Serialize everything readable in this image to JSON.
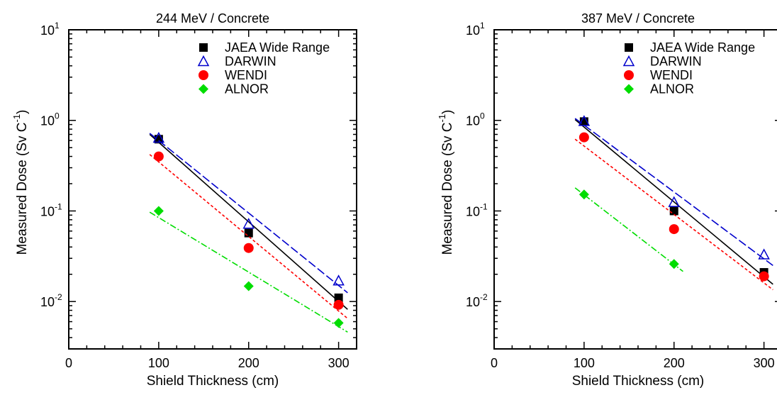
{
  "chart_data": [
    {
      "type": "scatter",
      "title": "244 MeV / Concrete",
      "xlabel": "Shield Thickness (cm)",
      "ylabel": "Measured Dose (Sv C",
      "ylabel_sup": "-1",
      "ylabel_close": ")",
      "xlim": [
        0,
        320
      ],
      "ylim": [
        0.003,
        10
      ],
      "yscale": "log",
      "x_ticks": [
        0,
        100,
        200,
        300
      ],
      "y_ticks": [
        {
          "base": "10",
          "exp": "1",
          "value": 10
        },
        {
          "base": "10",
          "exp": "0",
          "value": 1
        },
        {
          "base": "10",
          "exp": "-1",
          "value": 0.1
        },
        {
          "base": "10",
          "exp": "-2",
          "value": 0.01
        }
      ],
      "legend_position": "top-right",
      "series": [
        {
          "name": "JAEA Wide Range",
          "color": "#000000",
          "marker": "square",
          "line": "solid",
          "x": [
            100,
            200,
            300
          ],
          "y": [
            0.62,
            0.057,
            0.011
          ],
          "fit": {
            "x": [
              90,
              310
            ],
            "y": [
              0.7,
              0.0082
            ]
          }
        },
        {
          "name": "DARWIN",
          "color": "#0000cc",
          "marker": "triangle-open",
          "line": "dashed",
          "x": [
            100,
            200,
            300
          ],
          "y": [
            0.64,
            0.072,
            0.017
          ],
          "fit": {
            "x": [
              90,
              310
            ],
            "y": [
              0.72,
              0.0125
            ]
          }
        },
        {
          "name": "WENDI",
          "color": "#ff0000",
          "marker": "circle",
          "line": "dotted",
          "x": [
            100,
            200,
            300
          ],
          "y": [
            0.4,
            0.039,
            0.0092
          ],
          "fit": {
            "x": [
              90,
              310
            ],
            "y": [
              0.42,
              0.0065
            ]
          }
        },
        {
          "name": "ALNOR",
          "color": "#00dd00",
          "marker": "diamond",
          "line": "dashdot",
          "x": [
            100,
            200,
            300
          ],
          "y": [
            0.1,
            0.0148,
            0.0058
          ],
          "fit": {
            "x": [
              90,
              310
            ],
            "y": [
              0.097,
              0.0046
            ]
          }
        }
      ]
    },
    {
      "type": "scatter",
      "title": "387 MeV / Concrete",
      "xlabel": "Shield Thickness (cm)",
      "ylabel": "Measured Dose (Sv C",
      "ylabel_sup": "-1",
      "ylabel_close": ")",
      "xlim": [
        0,
        320
      ],
      "ylim": [
        0.003,
        10
      ],
      "yscale": "log",
      "x_ticks": [
        0,
        100,
        200,
        300
      ],
      "y_ticks": [
        {
          "base": "10",
          "exp": "1",
          "value": 10
        },
        {
          "base": "10",
          "exp": "0",
          "value": 1
        },
        {
          "base": "10",
          "exp": "-1",
          "value": 0.1
        },
        {
          "base": "10",
          "exp": "-2",
          "value": 0.01
        }
      ],
      "legend_position": "top-right",
      "series": [
        {
          "name": "JAEA Wide Range",
          "color": "#000000",
          "marker": "square",
          "line": "solid",
          "x": [
            100,
            200,
            300
          ],
          "y": [
            0.97,
            0.1,
            0.021
          ],
          "fit": {
            "x": [
              90,
              310
            ],
            "y": [
              1.02,
              0.0155
            ]
          }
        },
        {
          "name": "DARWIN",
          "color": "#0000cc",
          "marker": "triangle-open",
          "line": "dashed",
          "x": [
            100,
            200,
            300
          ],
          "y": [
            0.98,
            0.125,
            0.033
          ],
          "fit": {
            "x": [
              90,
              310
            ],
            "y": [
              1.05,
              0.025
            ]
          }
        },
        {
          "name": "WENDI",
          "color": "#ff0000",
          "marker": "circle",
          "line": "dotted",
          "x": [
            100,
            200,
            300
          ],
          "y": [
            0.65,
            0.063,
            0.019
          ],
          "fit": {
            "x": [
              90,
              310
            ],
            "y": [
              0.62,
              0.0135
            ]
          }
        },
        {
          "name": "ALNOR",
          "color": "#00dd00",
          "marker": "diamond",
          "line": "dashdot",
          "x": [
            100,
            200
          ],
          "y": [
            0.152,
            0.026
          ],
          "fit": {
            "x": [
              90,
              210
            ],
            "y": [
              0.18,
              0.0215
            ]
          }
        }
      ]
    }
  ]
}
